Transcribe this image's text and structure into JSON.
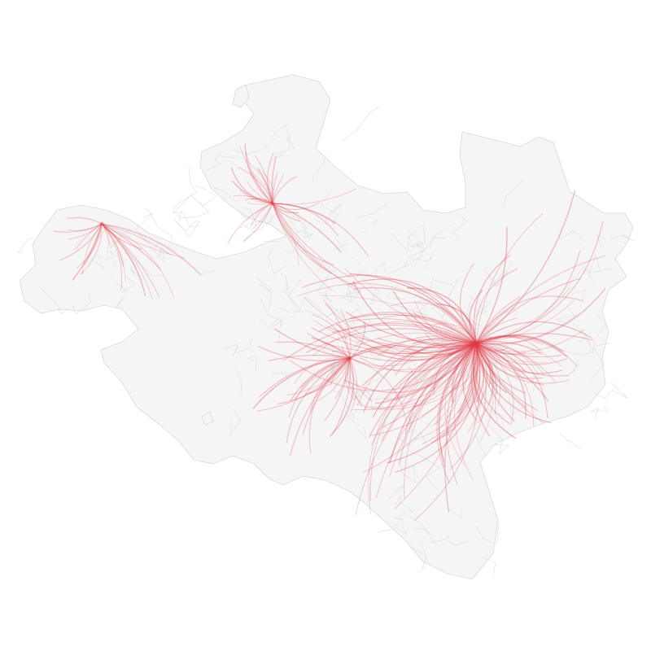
{
  "map": {
    "style": {
      "land_fill": "#f5f5f6",
      "land_stroke": "#d9d9dc",
      "border_stroke": "#dedee2",
      "flow_color": "#e03a46",
      "flow_opacity": 0.3
    },
    "legend": "none",
    "labels": "none",
    "hubs": [
      {
        "id": "main-hub",
        "role": "primary",
        "flow_count": 190
      },
      {
        "id": "north-node",
        "role": "secondary",
        "flow_count": 42
      },
      {
        "id": "west-node",
        "role": "secondary",
        "flow_count": 26
      },
      {
        "id": "central-node",
        "role": "secondary",
        "flow_count": 44
      }
    ]
  }
}
